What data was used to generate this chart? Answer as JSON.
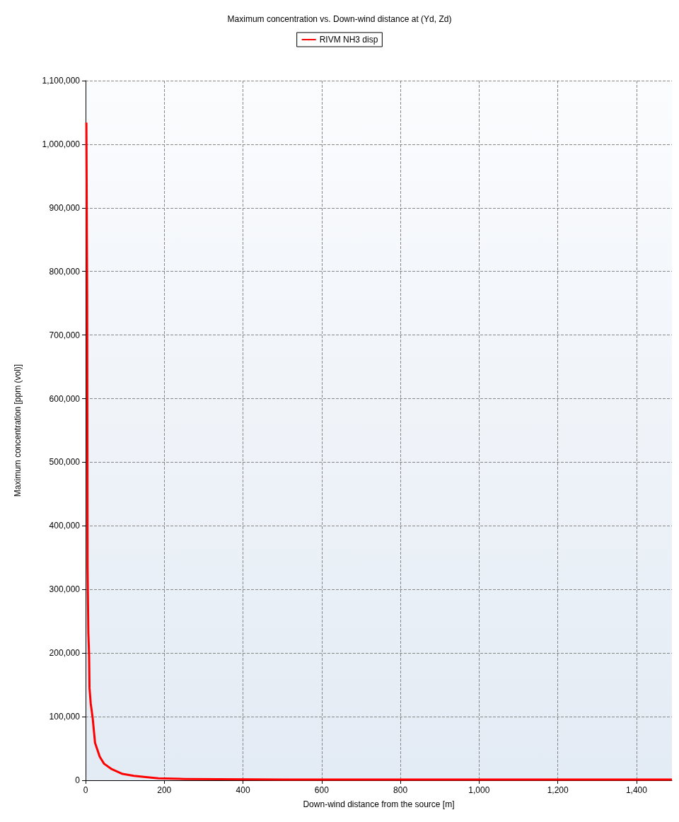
{
  "chart_data": {
    "type": "line",
    "title": "Maximum concentration vs. Down-wind distance at (Yd, Zd)",
    "xlabel": "Down-wind distance from the source [m]",
    "ylabel": "Maximum concentration [ppm (vol)]",
    "x": [
      2,
      4,
      5,
      7,
      9,
      10,
      13,
      18,
      24,
      36,
      47,
      65,
      94,
      123,
      153,
      185,
      252,
      507,
      1490
    ],
    "series": [
      {
        "name": "RIVM NH3 disp",
        "color": "#ff0000",
        "values": [
          1034000,
          763000,
          335000,
          232000,
          195000,
          145000,
          121000,
          98000,
          59000,
          37000,
          26000,
          18000,
          10000,
          7000,
          5000,
          3000,
          2000,
          1000,
          1000
        ]
      }
    ],
    "xlim": [
      0,
      1490
    ],
    "xticks": [
      0,
      200,
      400,
      600,
      800,
      {
        "value": 1000,
        "label": "1,000"
      },
      {
        "value": 1200,
        "label": "1,200"
      },
      {
        "value": 1400,
        "label": "1,400"
      }
    ],
    "ylim": [
      0,
      1100000
    ],
    "yticks": [
      0,
      {
        "value": 100000,
        "label": "100,000"
      },
      {
        "value": 200000,
        "label": "200,000"
      },
      {
        "value": 300000,
        "label": "300,000"
      },
      {
        "value": 400000,
        "label": "400,000"
      },
      {
        "value": 500000,
        "label": "500,000"
      },
      {
        "value": 600000,
        "label": "600,000"
      },
      {
        "value": 700000,
        "label": "700,000"
      },
      {
        "value": 800000,
        "label": "800,000"
      },
      {
        "value": 900000,
        "label": "900,000"
      },
      {
        "value": 1000000,
        "label": "1,000,000"
      },
      {
        "value": 1100000,
        "label": "1,100,000"
      }
    ],
    "grid": true,
    "legend": "top",
    "marker": "none",
    "line_style": "solid"
  }
}
